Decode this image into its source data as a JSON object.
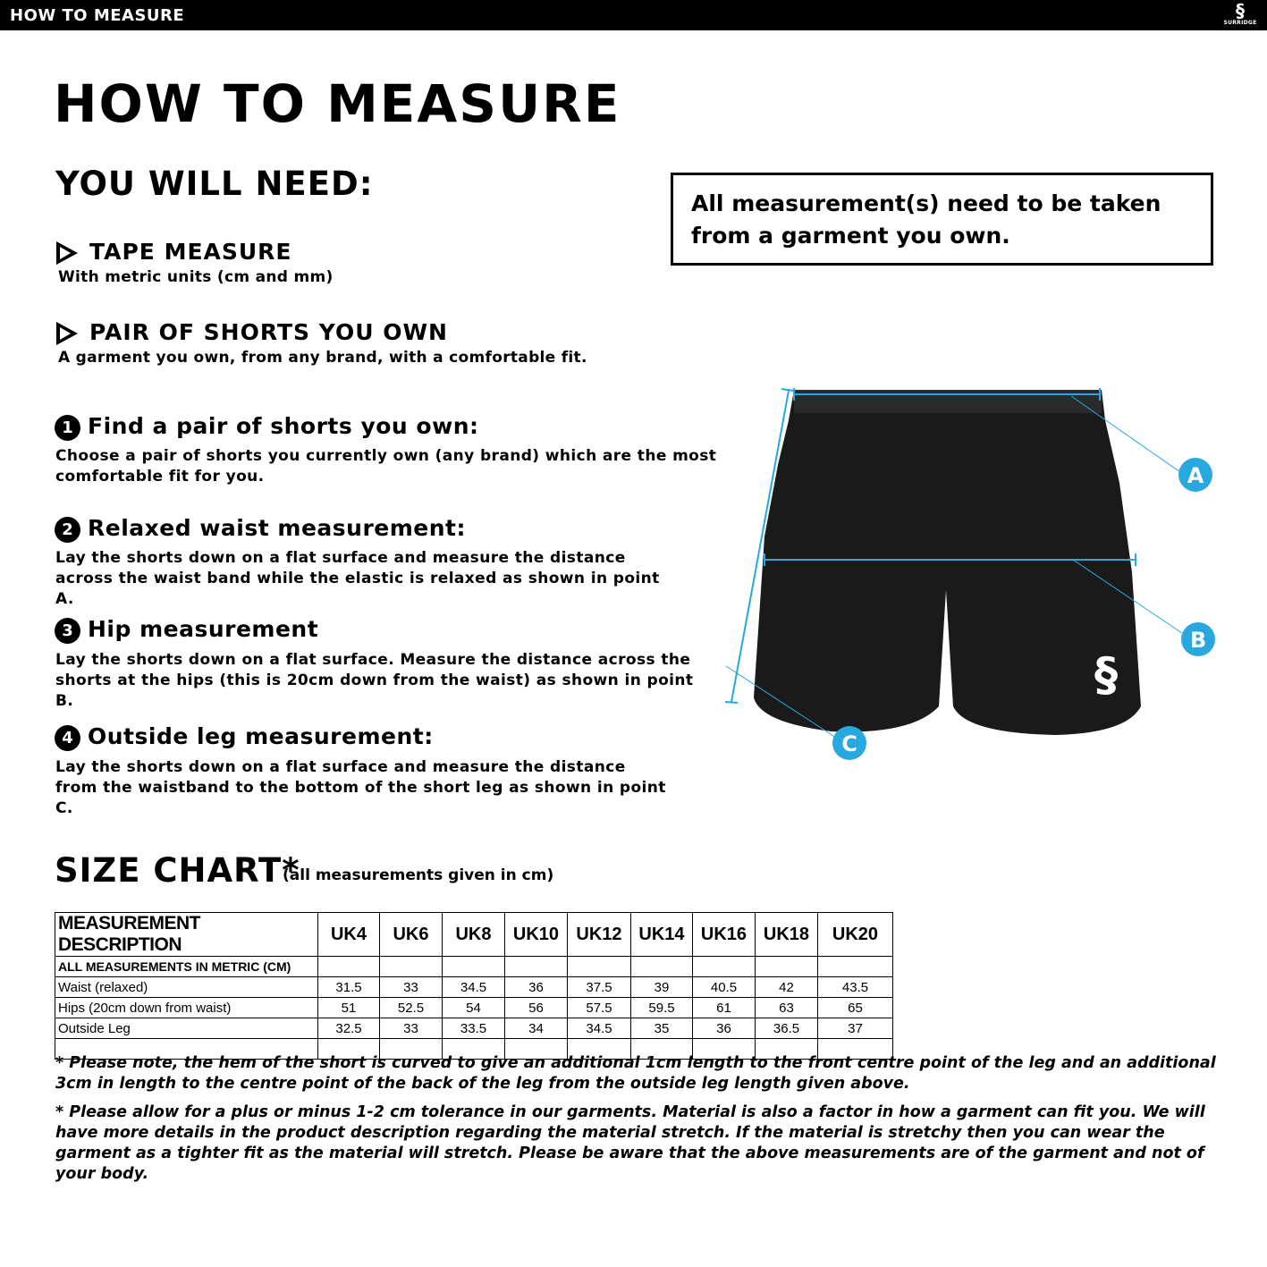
{
  "topbar": {
    "title": "HOW TO MEASURE",
    "brand": "SURRIDGE",
    "brand_mark": "S"
  },
  "page_title": "HOW TO MEASURE",
  "need": {
    "heading": "YOU WILL NEED:",
    "items": [
      {
        "title": "TAPE MEASURE",
        "desc": "With metric units (cm and mm)"
      },
      {
        "title": "PAIR OF SHORTS YOU OWN",
        "desc": "A garment you own, from any brand, with a comfortable fit."
      }
    ]
  },
  "notice": "All measurement(s) need to be taken from a garment you own.",
  "steps": [
    {
      "num": "1",
      "title": "Find a pair of shorts you own:",
      "body": "Choose a pair of shorts you currently own (any brand) which are the most comfortable fit for you."
    },
    {
      "num": "2",
      "title": "Relaxed waist measurement:",
      "body": "Lay the shorts down on a flat surface and measure the distance across the waist band while the elastic is relaxed as shown in point A."
    },
    {
      "num": "3",
      "title": "Hip measurement",
      "body": "Lay the shorts down on a flat surface. Measure the distance across the shorts at the hips (this is 20cm down from the waist)  as shown in point B."
    },
    {
      "num": "4",
      "title": "Outside leg measurement:",
      "body": "Lay the shorts down on a flat surface and measure the distance from the waistband to the bottom of the short leg as shown in point C."
    }
  ],
  "diagram": {
    "labels": {
      "a": "A",
      "b": "B",
      "c": "C"
    },
    "accent": "#29a8e0"
  },
  "size_chart": {
    "title": "SIZE CHART*",
    "note": "(all measurements given in cm)",
    "header": "MEASUREMENT DESCRIPTION",
    "sizes": [
      "UK4",
      "UK6",
      "UK8",
      "UK10",
      "UK12",
      "UK14",
      "UK16",
      "UK18",
      "UK20"
    ],
    "subheader": "ALL MEASUREMENTS IN METRIC (CM)",
    "rows": [
      {
        "label": "Waist (relaxed)",
        "values": [
          "31.5",
          "33",
          "34.5",
          "36",
          "37.5",
          "39",
          "40.5",
          "42",
          "43.5"
        ]
      },
      {
        "label": "Hips (20cm down from waist)",
        "values": [
          "51",
          "52.5",
          "54",
          "56",
          "57.5",
          "59.5",
          "61",
          "63",
          "65"
        ]
      },
      {
        "label": "Outside Leg",
        "values": [
          "32.5",
          "33",
          "33.5",
          "34",
          "34.5",
          "35",
          "36",
          "36.5",
          "37"
        ]
      }
    ]
  },
  "footnotes": [
    "* Please note, the hem of the short is curved to give an additional 1cm length to the front centre point of the leg and an additional 3cm in length to the centre point of the back of the leg from the outside leg length given above.",
    "* Please allow for a plus or minus 1-2 cm tolerance in our garments. Material is also a factor in how a garment can fit you. We will have more details in the product description regarding the material stretch.  If the material is stretchy then you can wear the garment as a tighter fit as the material will stretch.  Please be aware that the above measurements are of the garment and not of your body."
  ]
}
